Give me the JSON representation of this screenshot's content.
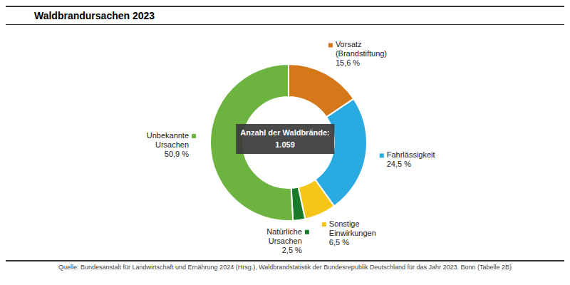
{
  "chart_data": {
    "type": "pie",
    "title": "Waldbrandursachen 2023",
    "categories": [
      "Vorsatz\n(Brandstiftung)",
      "Fahrlässigkeit",
      "Sonstige\nEinwirkungen",
      "Natürliche\nUrsachen",
      "Unbekannte\nUrsachen"
    ],
    "values": [
      15.6,
      24.5,
      6.5,
      2.5,
      50.9
    ],
    "value_labels": [
      "15,6 %",
      "24,5 %",
      "6,5 %",
      "2,5 %",
      "50,9 %"
    ],
    "colors": [
      "#D4781A",
      "#29ABE2",
      "#F5C518",
      "#1A7A2A",
      "#6DB33F"
    ],
    "data_labels": true,
    "annotations": [
      "Anzahl der Waldbrände:\n1.059",
      "Quelle: Bundesanstalt für Landwirtschaft und Ernährung 2024 (Hrsg.), Waldbrandstatistik der Bundesrepublik Deutschland für das Jahr 2023. Bonn (Tabelle 2B)"
    ]
  }
}
